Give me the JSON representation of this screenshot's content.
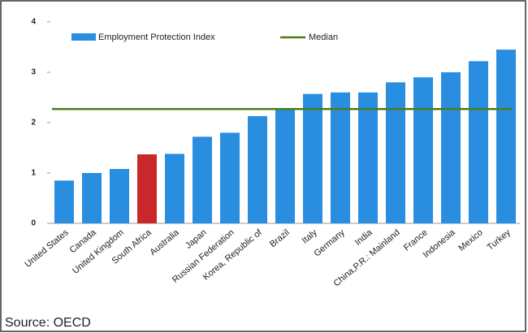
{
  "chart_data": {
    "type": "bar",
    "categories": [
      "United States",
      "Canada",
      "United Kingdom",
      "South Africa",
      "Australia",
      "Japan",
      "Russian Federation",
      "Korea, Republic of",
      "Brazil",
      "Italy",
      "Germany",
      "India",
      "China,P.R.: Mainland",
      "France",
      "Indonesia",
      "Mexico",
      "Turkey"
    ],
    "series": [
      {
        "name": "Employment Protection Index",
        "color": "#2a8ee0",
        "values": [
          0.85,
          1.0,
          1.08,
          1.37,
          1.38,
          1.72,
          1.8,
          2.13,
          2.27,
          2.57,
          2.6,
          2.6,
          2.8,
          2.9,
          3.0,
          3.22,
          3.45
        ],
        "colors": [
          "#2a8ee0",
          "#2a8ee0",
          "#2a8ee0",
          "#c8282a",
          "#2a8ee0",
          "#2a8ee0",
          "#2a8ee0",
          "#2a8ee0",
          "#2a8ee0",
          "#2a8ee0",
          "#2a8ee0",
          "#2a8ee0",
          "#2a8ee0",
          "#2a8ee0",
          "#2a8ee0",
          "#2a8ee0",
          "#2a8ee0"
        ]
      }
    ],
    "median": {
      "name": "Median",
      "value": 2.27,
      "color": "#4e7a1c"
    },
    "ylim": [
      0,
      4
    ],
    "yticks": [
      0,
      1,
      2,
      3,
      4
    ],
    "grid": false,
    "source": "Source: OECD"
  }
}
